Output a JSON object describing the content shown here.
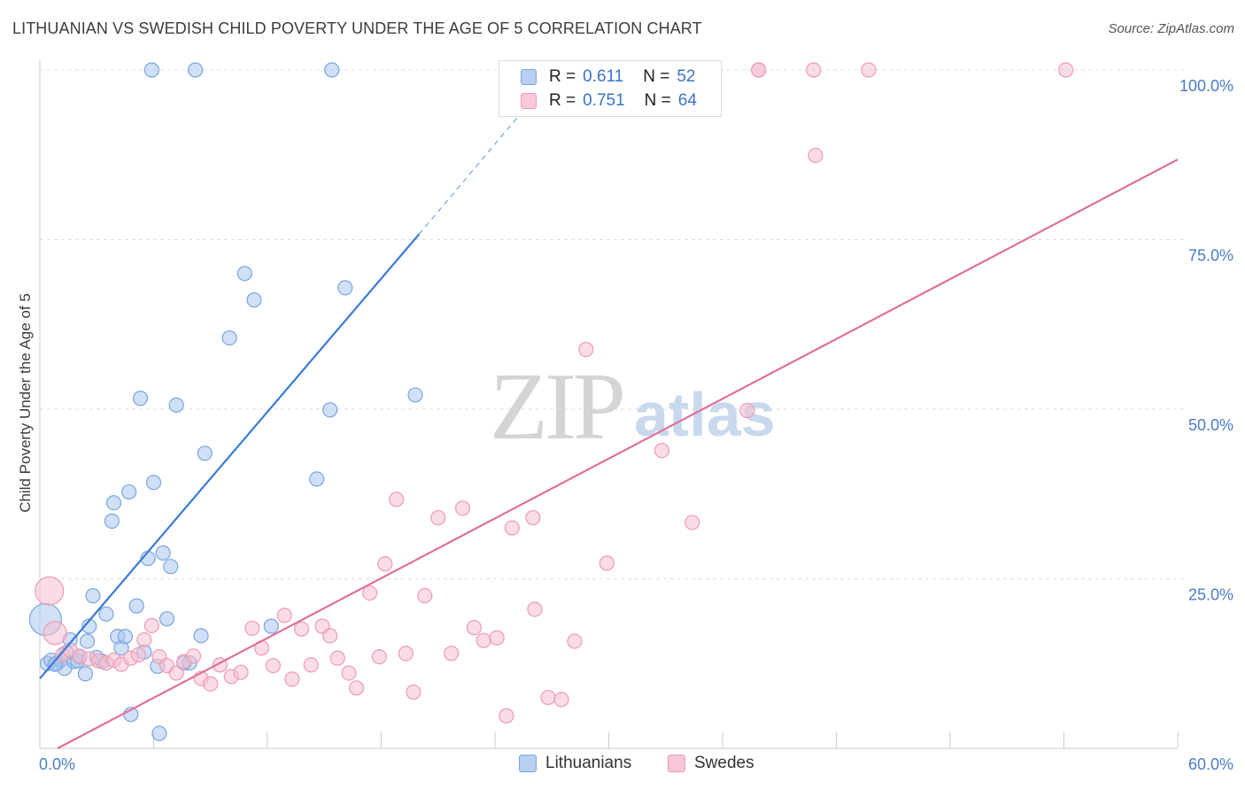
{
  "header": {
    "title": "LITHUANIAN VS SWEDISH CHILD POVERTY UNDER THE AGE OF 5 CORRELATION CHART",
    "source": "Source: ZipAtlas.com"
  },
  "watermark": {
    "zip": "ZIP",
    "atlas": "atlas"
  },
  "legend": {
    "rows": [
      {
        "r_label": "R = ",
        "r_value": "0.611",
        "n_label": "N = ",
        "n_value": "52"
      },
      {
        "r_label": "R = ",
        "r_value": "0.751",
        "n_label": "N = ",
        "n_value": "64"
      }
    ]
  },
  "bottom_legend": {
    "lithuanians": "Lithuanians",
    "swedes": "Swedes"
  },
  "colors": {
    "lithuanians_fill": "#a9c6ee",
    "lithuanians_stroke": "#7aa6de",
    "lithuanians_line": "#3a7bd5",
    "swedes_fill": "#f6bfd0",
    "swedes_stroke": "#ee9ab5",
    "swedes_line": "#e0709a",
    "grid": "#dddddd",
    "tick_text": "#4a7cc9"
  },
  "chart_data": {
    "type": "scatter",
    "title": "LITHUANIAN VS SWEDISH CHILD POVERTY UNDER THE AGE OF 5 CORRELATION CHART",
    "xlabel": "",
    "ylabel": "Child Poverty Under the Age of 5",
    "xlim": [
      0,
      60
    ],
    "ylim": [
      0,
      100
    ],
    "x_tick_labels": [
      "0.0%",
      "60.0%"
    ],
    "y_ticks": [
      25,
      50,
      75,
      100
    ],
    "y_tick_labels": [
      "25.0%",
      "50.0%",
      "75.0%",
      "100.0%"
    ],
    "grid": true,
    "legend_position": "top-center",
    "series": [
      {
        "name": "Lithuanians",
        "r": 0.611,
        "n": 52,
        "trend": {
          "x": [
            0,
            20
          ],
          "y": [
            10.3,
            75.8
          ],
          "dashed_to": [
            25.6,
            94.4
          ]
        },
        "points": [
          [
            0.3,
            19
          ],
          [
            0.4,
            12.5
          ],
          [
            0.6,
            13
          ],
          [
            0.9,
            12.5
          ],
          [
            1.1,
            13
          ],
          [
            1.3,
            11.8
          ],
          [
            1.6,
            16
          ],
          [
            1.8,
            12.8
          ],
          [
            2.1,
            13.5
          ],
          [
            2.4,
            11
          ],
          [
            2.5,
            15.8
          ],
          [
            2.6,
            18
          ],
          [
            2.8,
            22.5
          ],
          [
            3.3,
            12.8
          ],
          [
            3.5,
            19.8
          ],
          [
            3.8,
            33.5
          ],
          [
            3.9,
            36.2
          ],
          [
            4.1,
            16.5
          ],
          [
            4.3,
            14.8
          ],
          [
            4.5,
            16.5
          ],
          [
            4.7,
            37.8
          ],
          [
            4.8,
            5
          ],
          [
            5.1,
            21
          ],
          [
            5.3,
            51.6
          ],
          [
            5.5,
            14.2
          ],
          [
            5.7,
            28
          ],
          [
            5.9,
            100
          ],
          [
            6.0,
            39.2
          ],
          [
            6.2,
            12.1
          ],
          [
            6.3,
            2.2
          ],
          [
            6.5,
            28.8
          ],
          [
            6.7,
            19.1
          ],
          [
            6.9,
            26.8
          ],
          [
            7.2,
            50.6
          ],
          [
            7.6,
            12.6
          ],
          [
            8.2,
            100
          ],
          [
            8.5,
            16.6
          ],
          [
            8.7,
            43.5
          ],
          [
            10.0,
            60.5
          ],
          [
            10.8,
            70
          ],
          [
            11.3,
            66.1
          ],
          [
            12.2,
            18
          ],
          [
            14.6,
            39.7
          ],
          [
            15.3,
            49.9
          ],
          [
            15.4,
            100
          ],
          [
            16.1,
            67.9
          ],
          [
            19.8,
            52.1
          ],
          [
            3.0,
            13.4
          ],
          [
            1.4,
            14.1
          ],
          [
            7.9,
            12.6
          ],
          [
            2.0,
            12.9
          ],
          [
            0.8,
            12.4
          ]
        ]
      },
      {
        "name": "Swedes",
        "r": 0.751,
        "n": 64,
        "trend": {
          "x": [
            0,
            60
          ],
          "y": [
            -0.6,
            86.8
          ]
        },
        "points": [
          [
            0.5,
            23.2
          ],
          [
            0.8,
            17
          ],
          [
            1.2,
            13.8
          ],
          [
            1.6,
            14.5
          ],
          [
            2.1,
            13.6
          ],
          [
            2.6,
            13.2
          ],
          [
            3.1,
            12.9
          ],
          [
            3.5,
            12.6
          ],
          [
            3.9,
            13
          ],
          [
            4.3,
            12.4
          ],
          [
            4.8,
            13.3
          ],
          [
            5.2,
            13.8
          ],
          [
            5.5,
            16
          ],
          [
            5.9,
            18.1
          ],
          [
            6.3,
            13.5
          ],
          [
            6.7,
            12.2
          ],
          [
            7.2,
            11.1
          ],
          [
            7.6,
            12.8
          ],
          [
            8.1,
            13.6
          ],
          [
            8.5,
            10.3
          ],
          [
            9.0,
            9.5
          ],
          [
            9.5,
            12.3
          ],
          [
            10.1,
            10.6
          ],
          [
            10.6,
            11.2
          ],
          [
            11.2,
            17.7
          ],
          [
            11.7,
            14.8
          ],
          [
            12.3,
            12.2
          ],
          [
            12.9,
            19.6
          ],
          [
            13.3,
            10.2
          ],
          [
            13.8,
            17.6
          ],
          [
            14.3,
            12.3
          ],
          [
            14.9,
            18
          ],
          [
            15.3,
            16.6
          ],
          [
            15.7,
            13.3
          ],
          [
            16.3,
            11.1
          ],
          [
            16.7,
            8.9
          ],
          [
            17.4,
            22.9
          ],
          [
            17.9,
            13.5
          ],
          [
            18.2,
            27.2
          ],
          [
            18.8,
            36.7
          ],
          [
            19.3,
            14
          ],
          [
            19.7,
            8.3
          ],
          [
            20.3,
            22.5
          ],
          [
            21.0,
            34
          ],
          [
            21.7,
            14
          ],
          [
            22.3,
            35.4
          ],
          [
            22.9,
            17.8
          ],
          [
            23.4,
            15.9
          ],
          [
            24.1,
            16.3
          ],
          [
            24.6,
            4.8
          ],
          [
            24.9,
            32.5
          ],
          [
            26.0,
            34
          ],
          [
            26.1,
            20.5
          ],
          [
            26.8,
            7.5
          ],
          [
            27.5,
            7.2
          ],
          [
            28.2,
            15.8
          ],
          [
            28.8,
            58.8
          ],
          [
            29.9,
            27.3
          ],
          [
            32.8,
            43.9
          ],
          [
            34.4,
            33.3
          ],
          [
            37.3,
            49.8
          ],
          [
            40.9,
            87.4
          ],
          [
            37.9,
            100
          ],
          [
            54.1,
            100
          ]
        ]
      }
    ],
    "annotations": [
      [
        37.9,
        100
      ],
      [
        40.8,
        100
      ],
      [
        43.7,
        100
      ]
    ]
  }
}
